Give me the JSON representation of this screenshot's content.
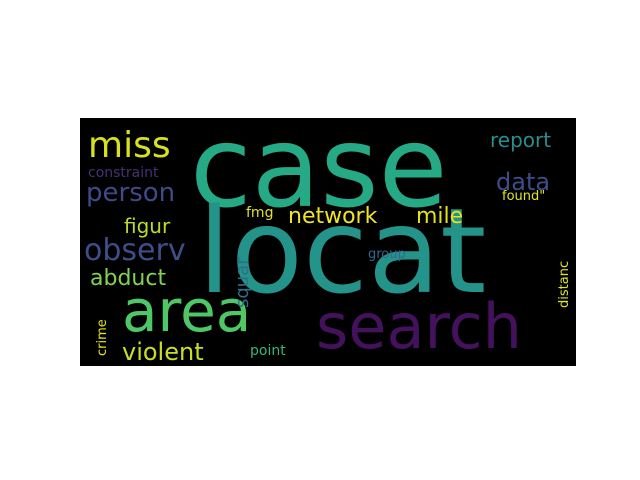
{
  "word_cloud": {
    "background": "#000000",
    "words": {
      "case": "case",
      "locat": "locat",
      "area": "area",
      "search": "search",
      "miss": "miss",
      "person": "person",
      "observ": "observ",
      "abduct": "abduct",
      "violent": "violent",
      "figur": "figur",
      "constraint": "constraint",
      "network": "network",
      "mile": "mile",
      "report": "report",
      "data": "data",
      "found": "found\"",
      "fmg": "fmg",
      "squar": "squar",
      "group": "group",
      "point": "point",
      "crime": "crime",
      "distanc": "distanc"
    },
    "colors": {
      "teal": "#26a985",
      "dark_teal": "#24948b",
      "green": "#4ec767",
      "purple": "#44125c",
      "yellow": "#d8e21b",
      "slate_blue": "#3e4b89"
    }
  }
}
